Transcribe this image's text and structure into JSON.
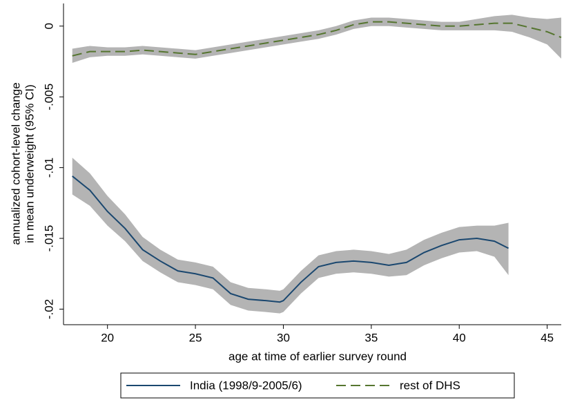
{
  "chart_data": {
    "type": "line",
    "x_label": "age at time of earlier survey round",
    "y_label": [
      "annualized cohort-level change",
      "in mean underweight (95% CI)"
    ],
    "xlim": [
      17.5,
      45.8
    ],
    "ylim": [
      -0.0211,
      0.0016
    ],
    "xticks": [
      20,
      25,
      30,
      35,
      40,
      45
    ],
    "yticks": [
      {
        "value": 0,
        "label": "0"
      },
      {
        "value": -0.005,
        "label": "-.005"
      },
      {
        "value": -0.01,
        "label": "-.01"
      },
      {
        "value": -0.015,
        "label": "-.015"
      },
      {
        "value": -0.02,
        "label": "-.02"
      }
    ],
    "grid": false,
    "band_color": "#b4b4b4",
    "series": [
      {
        "name": "India (1998/9-2005/6)",
        "color": "#1a476f",
        "dash": "solid",
        "x": [
          18,
          19,
          20,
          21,
          22,
          23,
          24,
          25,
          26,
          27,
          28,
          29,
          29.8,
          30,
          31,
          32,
          33,
          34,
          35,
          36,
          37,
          38,
          39,
          40,
          41,
          42,
          42.8
        ],
        "values": [
          -0.0106,
          -0.0116,
          -0.0131,
          -0.0143,
          -0.0158,
          -0.0166,
          -0.0173,
          -0.0175,
          -0.0178,
          -0.0189,
          -0.0193,
          -0.0194,
          -0.0195,
          -0.0194,
          -0.0181,
          -0.017,
          -0.0167,
          -0.0166,
          -0.0167,
          -0.0169,
          -0.0167,
          -0.016,
          -0.0155,
          -0.0151,
          -0.015,
          -0.0152,
          -0.0157
        ],
        "ci_lower": [
          -0.0119,
          -0.0127,
          -0.0141,
          -0.0152,
          -0.0166,
          -0.0174,
          -0.0181,
          -0.0183,
          -0.0186,
          -0.0197,
          -0.0201,
          -0.0202,
          -0.0203,
          -0.0202,
          -0.0189,
          -0.0178,
          -0.0175,
          -0.0174,
          -0.0175,
          -0.0177,
          -0.0176,
          -0.0169,
          -0.0164,
          -0.016,
          -0.0159,
          -0.0163,
          -0.0176
        ],
        "ci_upper": [
          -0.0093,
          -0.0104,
          -0.012,
          -0.0133,
          -0.0149,
          -0.0158,
          -0.0165,
          -0.0167,
          -0.017,
          -0.0181,
          -0.0185,
          -0.0186,
          -0.0187,
          -0.0186,
          -0.0173,
          -0.0162,
          -0.0159,
          -0.0158,
          -0.0159,
          -0.0161,
          -0.0158,
          -0.0151,
          -0.0146,
          -0.0142,
          -0.0141,
          -0.0141,
          -0.0139
        ]
      },
      {
        "name": "rest of DHS",
        "color": "#55752f",
        "dash": "dashed",
        "x": [
          18,
          19,
          20,
          21,
          22,
          23,
          24,
          25,
          26,
          27,
          28,
          29,
          30,
          31,
          32,
          33,
          34,
          35,
          36,
          37,
          38,
          39,
          40,
          41,
          42,
          43,
          44,
          45,
          45.8
        ],
        "values": [
          -0.0021,
          -0.0018,
          -0.0018,
          -0.0018,
          -0.0017,
          -0.0018,
          -0.0019,
          -0.002,
          -0.0018,
          -0.0016,
          -0.0014,
          -0.0012,
          -0.001,
          -0.0008,
          -0.0006,
          -0.0003,
          0.0001,
          0.0003,
          0.0003,
          0.0002,
          0.0001,
          0,
          0,
          0.0001,
          0.0002,
          0.0002,
          -0.0001,
          -0.0004,
          -0.0008
        ],
        "ci_lower": [
          -0.0026,
          -0.0022,
          -0.0021,
          -0.0021,
          -0.002,
          -0.0021,
          -0.0022,
          -0.0023,
          -0.0021,
          -0.0019,
          -0.0017,
          -0.0015,
          -0.0013,
          -0.0011,
          -0.0009,
          -0.0006,
          -0.0002,
          0,
          0,
          -0.0001,
          -0.0002,
          -0.0003,
          -0.0003,
          -0.0003,
          -0.0003,
          -0.0004,
          -0.0008,
          -0.0013,
          -0.0023
        ],
        "ci_upper": [
          -0.0016,
          -0.0014,
          -0.0015,
          -0.0015,
          -0.0014,
          -0.0015,
          -0.0016,
          -0.0017,
          -0.0015,
          -0.0013,
          -0.0011,
          -0.0009,
          -0.0007,
          -0.0005,
          -0.0003,
          0,
          0.0004,
          0.0006,
          0.0006,
          0.0005,
          0.0004,
          0.0003,
          0.0003,
          0.0005,
          0.0007,
          0.0008,
          0.0006,
          0.0005,
          0.0006
        ]
      }
    ]
  }
}
